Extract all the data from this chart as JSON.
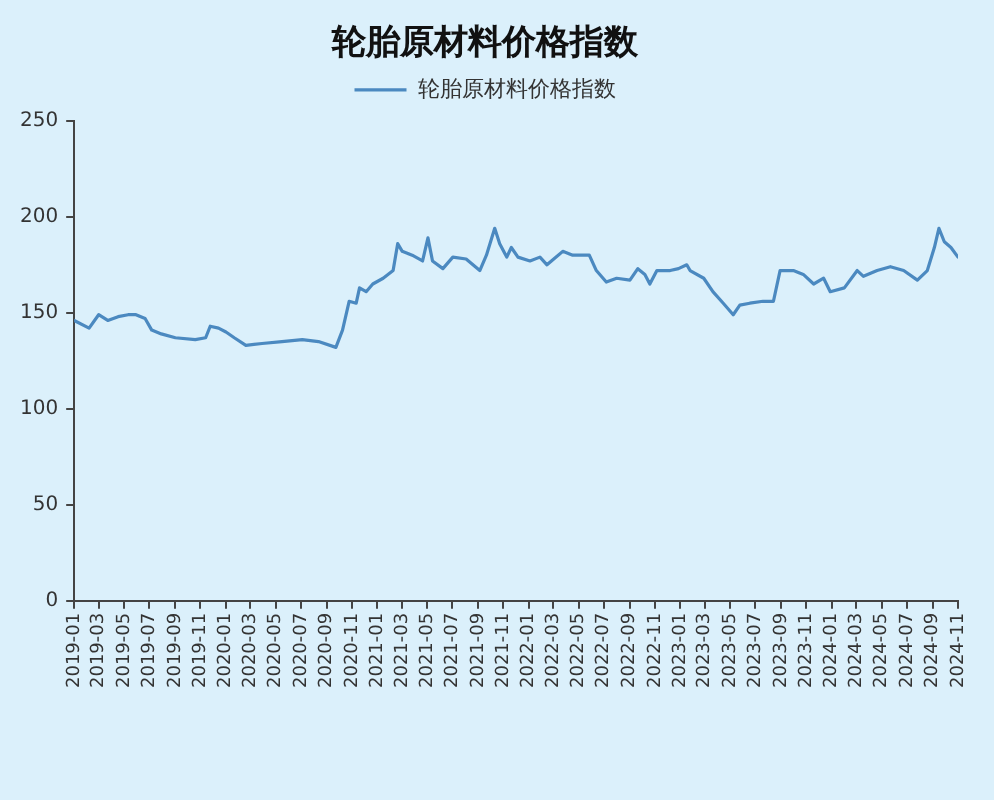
{
  "chart_data": {
    "type": "line",
    "title": "轮胎原材料价格指数",
    "x": [
      "2019-01-01",
      "2019-02-06",
      "2019-03-01",
      "2019-03-23",
      "2019-04-17",
      "2019-05-11",
      "2019-05-30",
      "2019-06-21",
      "2019-07-07",
      "2019-07-30",
      "2019-09-02",
      "2019-10-20",
      "2019-11-14",
      "2019-11-25",
      "2019-12-15",
      "2020-01-02",
      "2020-01-22",
      "2020-02-19",
      "2020-03-29",
      "2020-05-16",
      "2020-07-04",
      "2020-08-12",
      "2020-09-23",
      "2020-10-09",
      "2020-10-25",
      "2020-11-11",
      "2020-11-19",
      "2020-12-05",
      "2020-12-21",
      "2021-01-15",
      "2021-02-08",
      "2021-02-19",
      "2021-03-02",
      "2021-03-26",
      "2021-04-20",
      "2021-05-03",
      "2021-05-14",
      "2021-06-08",
      "2021-07-02",
      "2021-08-03",
      "2021-09-05",
      "2021-09-21",
      "2021-10-11",
      "2021-10-23",
      "2021-11-09",
      "2021-11-20",
      "2021-12-06",
      "2022-01-04",
      "2022-01-28",
      "2022-02-14",
      "2022-03-24",
      "2022-04-17",
      "2022-05-27",
      "2022-06-13",
      "2022-07-07",
      "2022-08-01",
      "2022-09-02",
      "2022-09-21",
      "2022-10-08",
      "2022-10-20",
      "2022-11-06",
      "2022-12-08",
      "2022-12-28",
      "2023-01-17",
      "2023-01-25",
      "2023-02-27",
      "2023-03-21",
      "2023-04-15",
      "2023-05-09",
      "2023-05-25",
      "2023-06-18",
      "2023-07-20",
      "2023-08-14",
      "2023-08-30",
      "2023-10-01",
      "2023-10-25",
      "2023-11-19",
      "2023-12-13",
      "2023-12-29",
      "2024-02-01",
      "2024-03-03",
      "2024-03-18",
      "2024-04-20",
      "2024-05-22",
      "2024-06-23",
      "2024-07-26",
      "2024-08-19",
      "2024-09-05",
      "2024-09-16",
      "2024-09-29",
      "2024-10-15",
      "2024-11-01"
    ],
    "series": [
      {
        "name": "轮胎原材料价格指数",
        "color": "#4b89c0",
        "values": [
          146,
          142,
          149,
          146,
          148,
          149,
          149,
          147,
          141,
          139,
          137,
          136,
          137,
          143,
          142,
          140,
          137,
          133,
          134,
          135,
          136,
          135,
          132,
          141,
          156,
          155,
          163,
          161,
          165,
          168,
          172,
          186,
          182,
          180,
          177,
          189,
          177,
          173,
          179,
          178,
          172,
          180,
          194,
          186,
          179,
          184,
          179,
          177,
          179,
          175,
          182,
          180,
          180,
          172,
          166,
          168,
          167,
          173,
          170,
          165,
          172,
          172,
          173,
          175,
          172,
          168,
          161,
          155,
          149,
          154,
          155,
          156,
          156,
          172,
          172,
          170,
          165,
          168,
          161,
          163,
          172,
          169,
          172,
          174,
          172,
          167,
          172,
          184,
          194,
          187,
          184,
          179
        ]
      }
    ],
    "xlim": [
      "2019-01",
      "2024-11"
    ],
    "xticks": [
      "2019-01",
      "2019-03",
      "2019-05",
      "2019-07",
      "2019-09",
      "2019-11",
      "2020-01",
      "2020-03",
      "2020-05",
      "2020-07",
      "2020-09",
      "2020-11",
      "2021-01",
      "2021-03",
      "2021-05",
      "2021-07",
      "2021-09",
      "2021-11",
      "2022-01",
      "2022-03",
      "2022-05",
      "2022-07",
      "2022-09",
      "2022-11",
      "2023-01",
      "2023-03",
      "2023-05",
      "2023-07",
      "2023-09",
      "2023-11",
      "2024-01",
      "2024-03",
      "2024-05",
      "2024-07",
      "2024-09",
      "2024-11"
    ],
    "ylim": [
      0,
      250
    ],
    "yticks": [
      0,
      50,
      100,
      150,
      200,
      250
    ],
    "legend": "top",
    "marker": "none"
  }
}
